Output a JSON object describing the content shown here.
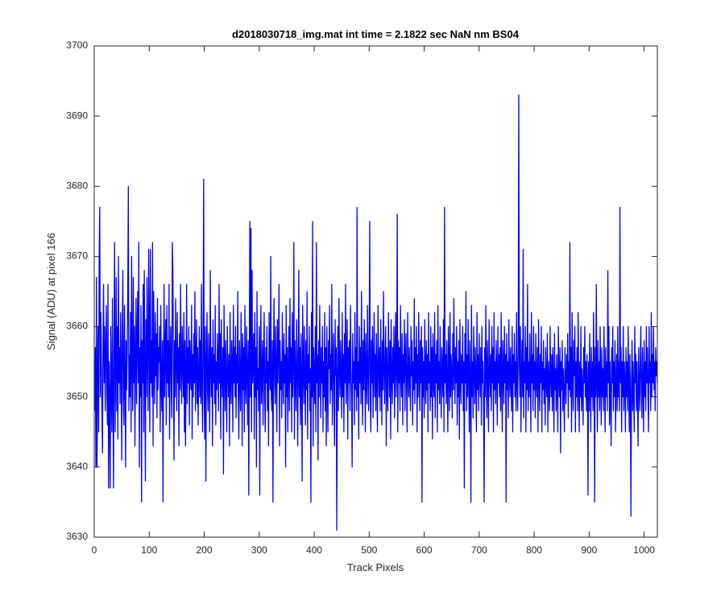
{
  "chart_data": {
    "type": "line",
    "title": "d2018030718_img.mat int time = 2.1822 sec  NaN nm BS04",
    "xlabel": "Track Pixels",
    "ylabel": "Signal (ADU) at pixel 166",
    "xlim": [
      0,
      1024
    ],
    "ylim": [
      3630,
      3700
    ],
    "xticks": [
      0,
      100,
      200,
      300,
      400,
      500,
      600,
      700,
      800,
      900,
      1000
    ],
    "yticks": [
      3630,
      3640,
      3650,
      3660,
      3670,
      3680,
      3690,
      3700
    ],
    "color": "#0000ff",
    "values": [
      3648,
      3657,
      3640,
      3667,
      3640,
      3652,
      3660,
      3645,
      3670,
      3677,
      3650,
      3662,
      3655,
      3648,
      3642,
      3658,
      3666,
      3652,
      3660,
      3648,
      3656,
      3663,
      3651,
      3646,
      3666,
      3637,
      3655,
      3649,
      3637,
      3660,
      3652,
      3645,
      3664,
      3650,
      3637,
      3658,
      3672,
      3645,
      3655,
      3667,
      3648,
      3660,
      3644,
      3670,
      3652,
      3657,
      3649,
      3662,
      3655,
      3641,
      3659,
      3668,
      3650,
      3646,
      3663,
      3653,
      3640,
      3658,
      3651,
      3657,
      3665,
      3680,
      3648,
      3656,
      3650,
      3662,
      3645,
      3670,
      3655,
      3648,
      3667,
      3652,
      3660,
      3643,
      3656,
      3664,
      3649,
      3658,
      3665,
      3652,
      3672,
      3640,
      3657,
      3650,
      3663,
      3635,
      3658,
      3652,
      3666,
      3645,
      3668,
      3654,
      3638,
      3661,
      3650,
      3667,
      3655,
      3648,
      3671,
      3660,
      3645,
      3671,
      3652,
      3658,
      3650,
      3672,
      3643,
      3665,
      3656,
      3649,
      3662,
      3653,
      3659,
      3647,
      3664,
      3651,
      3657,
      3655,
      3660,
      3645,
      3663,
      3652,
      3648,
      3658,
      3635,
      3654,
      3666,
      3650,
      3657,
      3661,
      3646,
      3663,
      3652,
      3658,
      3650,
      3666,
      3644,
      3655,
      3660,
      3652,
      3647,
      3672,
      3668,
      3653,
      3641,
      3658,
      3650,
      3664,
      3655,
      3648,
      3662,
      3652,
      3657,
      3643,
      3659,
      3651,
      3666,
      3654,
      3649,
      3660,
      3655,
      3650,
      3662,
      3645,
      3658,
      3643,
      3653,
      3666,
      3649,
      3657,
      3652,
      3660,
      3646,
      3658,
      3654,
      3651,
      3663,
      3644,
      3656,
      3650,
      3659,
      3652,
      3665,
      3648,
      3655,
      3661,
      3649,
      3657,
      3646,
      3653,
      3660,
      3650,
      3658,
      3649,
      3666,
      3652,
      3645,
      3657,
      3681,
      3650,
      3644,
      3660,
      3638,
      3655,
      3662,
      3651,
      3648,
      3659,
      3653,
      3645,
      3668,
      3654,
      3650,
      3657,
      3643,
      3661,
      3652,
      3656,
      3649,
      3663,
      3646,
      3655,
      3651,
      3659,
      3654,
      3648,
      3666,
      3652,
      3659,
      3644,
      3661,
      3653,
      3650,
      3657,
      3639,
      3663,
      3655,
      3648,
      3658,
      3652,
      3645,
      3660,
      3654,
      3650,
      3656,
      3643,
      3662,
      3652,
      3649,
      3658,
      3655,
      3645,
      3663,
      3652,
      3657,
      3650,
      3660,
      3647,
      3656,
      3652,
      3665,
      3650,
      3644,
      3658,
      3653,
      3648,
      3662,
      3655,
      3643,
      3659,
      3651,
      3657,
      3645,
      3663,
      3652,
      3649,
      3660,
      3654,
      3646,
      3658,
      3636,
      3656,
      3675,
      3650,
      3674,
      3645,
      3668,
      3652,
      3655,
      3659,
      3644,
      3662,
      3650,
      3657,
      3640,
      3665,
      3651,
      3654,
      3648,
      3660,
      3636,
      3656,
      3663,
      3649,
      3653,
      3658,
      3646,
      3655,
      3662,
      3650,
      3645,
      3657,
      3652,
      3660,
      3648,
      3655,
      3643,
      3662,
      3654,
      3651,
      3670,
      3650,
      3648,
      3658,
      3635,
      3656,
      3664,
      3652,
      3649,
      3660,
      3654,
      3645,
      3661,
      3652,
      3657,
      3666,
      3643,
      3658,
      3651,
      3655,
      3647,
      3662,
      3653,
      3649,
      3659,
      3652,
      3656,
      3640,
      3663,
      3650,
      3657,
      3645,
      3654,
      3660,
      3648,
      3664,
      3652,
      3657,
      3645,
      3662,
      3650,
      3655,
      3672,
      3644,
      3658,
      3652,
      3648,
      3661,
      3656,
      3643,
      3654,
      3668,
      3650,
      3657,
      3646,
      3659,
      3652,
      3638,
      3663,
      3655,
      3649,
      3660,
      3653,
      3646,
      3658,
      3651,
      3665,
      3644,
      3656,
      3652,
      3660,
      3648,
      3654,
      3635,
      3662,
      3650,
      3675,
      3643,
      3657,
      3653,
      3649,
      3660,
      3645,
      3672,
      3652,
      3656,
      3641,
      3658,
      3650,
      3663,
      3654,
      3647,
      3657,
      3652,
      3660,
      3645,
      3655,
      3650,
      3662,
      3648,
      3657,
      3643,
      3660,
      3652,
      3645,
      3658,
      3654,
      3663,
      3649,
      3656,
      3651,
      3666,
      3646,
      3655,
      3659,
      3650,
      3643,
      3661,
      3653,
      3657,
      3631,
      3652,
      3660,
      3648,
      3664,
      3654,
      3650,
      3658,
      3653,
      3647,
      3662,
      3650,
      3656,
      3645,
      3659,
      3652,
      3666,
      3649,
      3655,
      3661,
      3644,
      3657,
      3652,
      3658,
      3648,
      3663,
      3654,
      3650,
      3640,
      3659,
      3652,
      3655,
      3646,
      3662,
      3651,
      3657,
      3648,
      3677,
      3650,
      3655,
      3644,
      3660,
      3652,
      3657,
      3649,
      3665,
      3653,
      3646,
      3658,
      3651,
      3661,
      3655,
      3645,
      3659,
      3652,
      3649,
      3663,
      3654,
      3648,
      3657,
      3675,
      3650,
      3645,
      3658,
      3652,
      3660,
      3647,
      3655,
      3662,
      3650,
      3656,
      3648,
      3659,
      3652,
      3645,
      3663,
      3655,
      3650,
      3657,
      3648,
      3661,
      3653,
      3646,
      3658,
      3651,
      3665,
      3654,
      3649,
      3656,
      3660,
      3643,
      3657,
      3652,
      3648,
      3662,
      3655,
      3650,
      3658,
      3644,
      3661,
      3653,
      3649,
      3657,
      3652,
      3660,
      3647,
      3655,
      3662,
      3650,
      3654,
      3676,
      3645,
      3658,
      3652,
      3657,
      3648,
      3663,
      3653,
      3650,
      3659,
      3646,
      3656,
      3652,
      3661,
      3648,
      3655,
      3659,
      3651,
      3645,
      3662,
      3654,
      3650,
      3657,
      3652,
      3648,
      3660,
      3653,
      3658,
      3646,
      3655,
      3651,
      3664,
      3649,
      3657,
      3652,
      3660,
      3645,
      3656,
      3650,
      3662,
      3654,
      3648,
      3658,
      3652,
      3660,
      3635,
      3657,
      3650,
      3655,
      3647,
      3661,
      3653,
      3649,
      3658,
      3651,
      3656,
      3645,
      3662,
      3652,
      3655,
      3648,
      3660,
      3650,
      3657,
      3644,
      3659,
      3653,
      3650,
      3662,
      3647,
      3656,
      3652,
      3658,
      3645,
      3663,
      3651,
      3655,
      3649,
      3660,
      3652,
      3647,
      3657,
      3654,
      3650,
      3661,
      3645,
      3677,
      3652,
      3656,
      3649,
      3658,
      3652,
      3645,
      3660,
      3655,
      3648,
      3662,
      3650,
      3656,
      3653,
      3647,
      3659,
      3651,
      3664,
      3654,
      3649,
      3657,
      3652,
      3660,
      3646,
      3655,
      3650,
      3658,
      3644,
      3661,
      3653,
      3649,
      3656,
      3652,
      3660,
      3648,
      3655,
      3637,
      3659,
      3652,
      3665,
      3648,
      3656,
      3650,
      3661,
      3653,
      3645,
      3658,
      3652,
      3635,
      3663,
      3650,
      3655,
      3647,
      3660,
      3654,
      3649,
      3657,
      3652,
      3645,
      3662,
      3651,
      3656,
      3648,
      3659,
      3653,
      3650,
      3657,
      3646,
      3660,
      3652,
      3655,
      3648,
      3635,
      3657,
      3650,
      3663,
      3653,
      3647,
      3658,
      3652,
      3645,
      3661,
      3654,
      3650,
      3656,
      3648,
      3660,
      3652,
      3657,
      3645,
      3662,
      3651,
      3655,
      3649,
      3658,
      3653,
      3646,
      3660,
      3652,
      3656,
      3650,
      3657,
      3648,
      3662,
      3652,
      3645,
      3658,
      3654,
      3649,
      3660,
      3652,
      3656,
      3635,
      3659,
      3651,
      3655,
      3647,
      3661,
      3653,
      3650,
      3657,
      3652,
      3648,
      3660,
      3645,
      3656,
      3652,
      3659,
      3650,
      3655,
      3648,
      3662,
      3652,
      3648,
      3657,
      3693,
      3655,
      3650,
      3660,
      3645,
      3653,
      3658,
      3650,
      3671,
      3647,
      3655,
      3652,
      3660,
      3645,
      3657,
      3651,
      3666,
      3648,
      3655,
      3650,
      3659,
      3653,
      3645,
      3662,
      3652,
      3656,
      3648,
      3660,
      3651,
      3655,
      3647,
      3659,
      3652,
      3650,
      3657,
      3645,
      3661,
      3653,
      3648,
      3656,
      3652,
      3660,
      3645,
      3655,
      3651,
      3658,
      3649,
      3654,
      3646,
      3657,
      3652,
      3650,
      3659,
      3645,
      3655,
      3652,
      3648,
      3660,
      3653,
      3650,
      3656,
      3648,
      3657,
      3652,
      3645,
      3659,
      3651,
      3654,
      3648,
      3656,
      3652,
      3645,
      3660,
      3653,
      3650,
      3657,
      3642,
      3655,
      3651,
      3658,
      3648,
      3654,
      3650,
      3645,
      3657,
      3652,
      3649,
      3656,
      3652,
      3659,
      3647,
      3655,
      3651,
      3672,
      3650,
      3657,
      3645,
      3662,
      3652,
      3648,
      3658,
      3653,
      3660,
      3645,
      3655,
      3650,
      3657,
      3648,
      3662,
      3652,
      3645,
      3655,
      3650,
      3660,
      3648,
      3654,
      3651,
      3646,
      3657,
      3652,
      3660,
      3650,
      3655,
      3648,
      3656,
      3652,
      3636,
      3655,
      3648,
      3659,
      3652,
      3645,
      3657,
      3650,
      3655,
      3648,
      3662,
      3653,
      3635,
      3657,
      3650,
      3666,
      3652,
      3645,
      3658,
      3650,
      3655,
      3648,
      3660,
      3652,
      3646,
      3657,
      3650,
      3654,
      3648,
      3660,
      3652,
      3645,
      3657,
      3650,
      3655,
      3648,
      3668,
      3652,
      3660,
      3646,
      3655,
      3650,
      3643,
      3657,
      3652,
      3660,
      3648,
      3655,
      3650,
      3658,
      3645,
      3652,
      3656,
      3648,
      3660,
      3650,
      3655,
      3648,
      3677,
      3652,
      3657,
      3645,
      3655,
      3650,
      3660,
      3648,
      3655,
      3652,
      3645,
      3657,
      3650,
      3655,
      3648,
      3660,
      3652,
      3645,
      3656,
      3650,
      3633,
      3652,
      3658,
      3648,
      3655,
      3650,
      3645,
      3660,
      3652,
      3656,
      3648,
      3655,
      3650,
      3643,
      3657,
      3652,
      3648,
      3655,
      3660,
      3650,
      3647,
      3657,
      3652,
      3645,
      3658,
      3650,
      3655,
      3648,
      3660,
      3652,
      3657,
      3650,
      3645,
      3660,
      3652,
      3655,
      3648,
      3662,
      3650,
      3656,
      3652,
      3660,
      3651,
      3655,
      3648,
      3657,
      3653,
      3655,
      3652
    ]
  }
}
